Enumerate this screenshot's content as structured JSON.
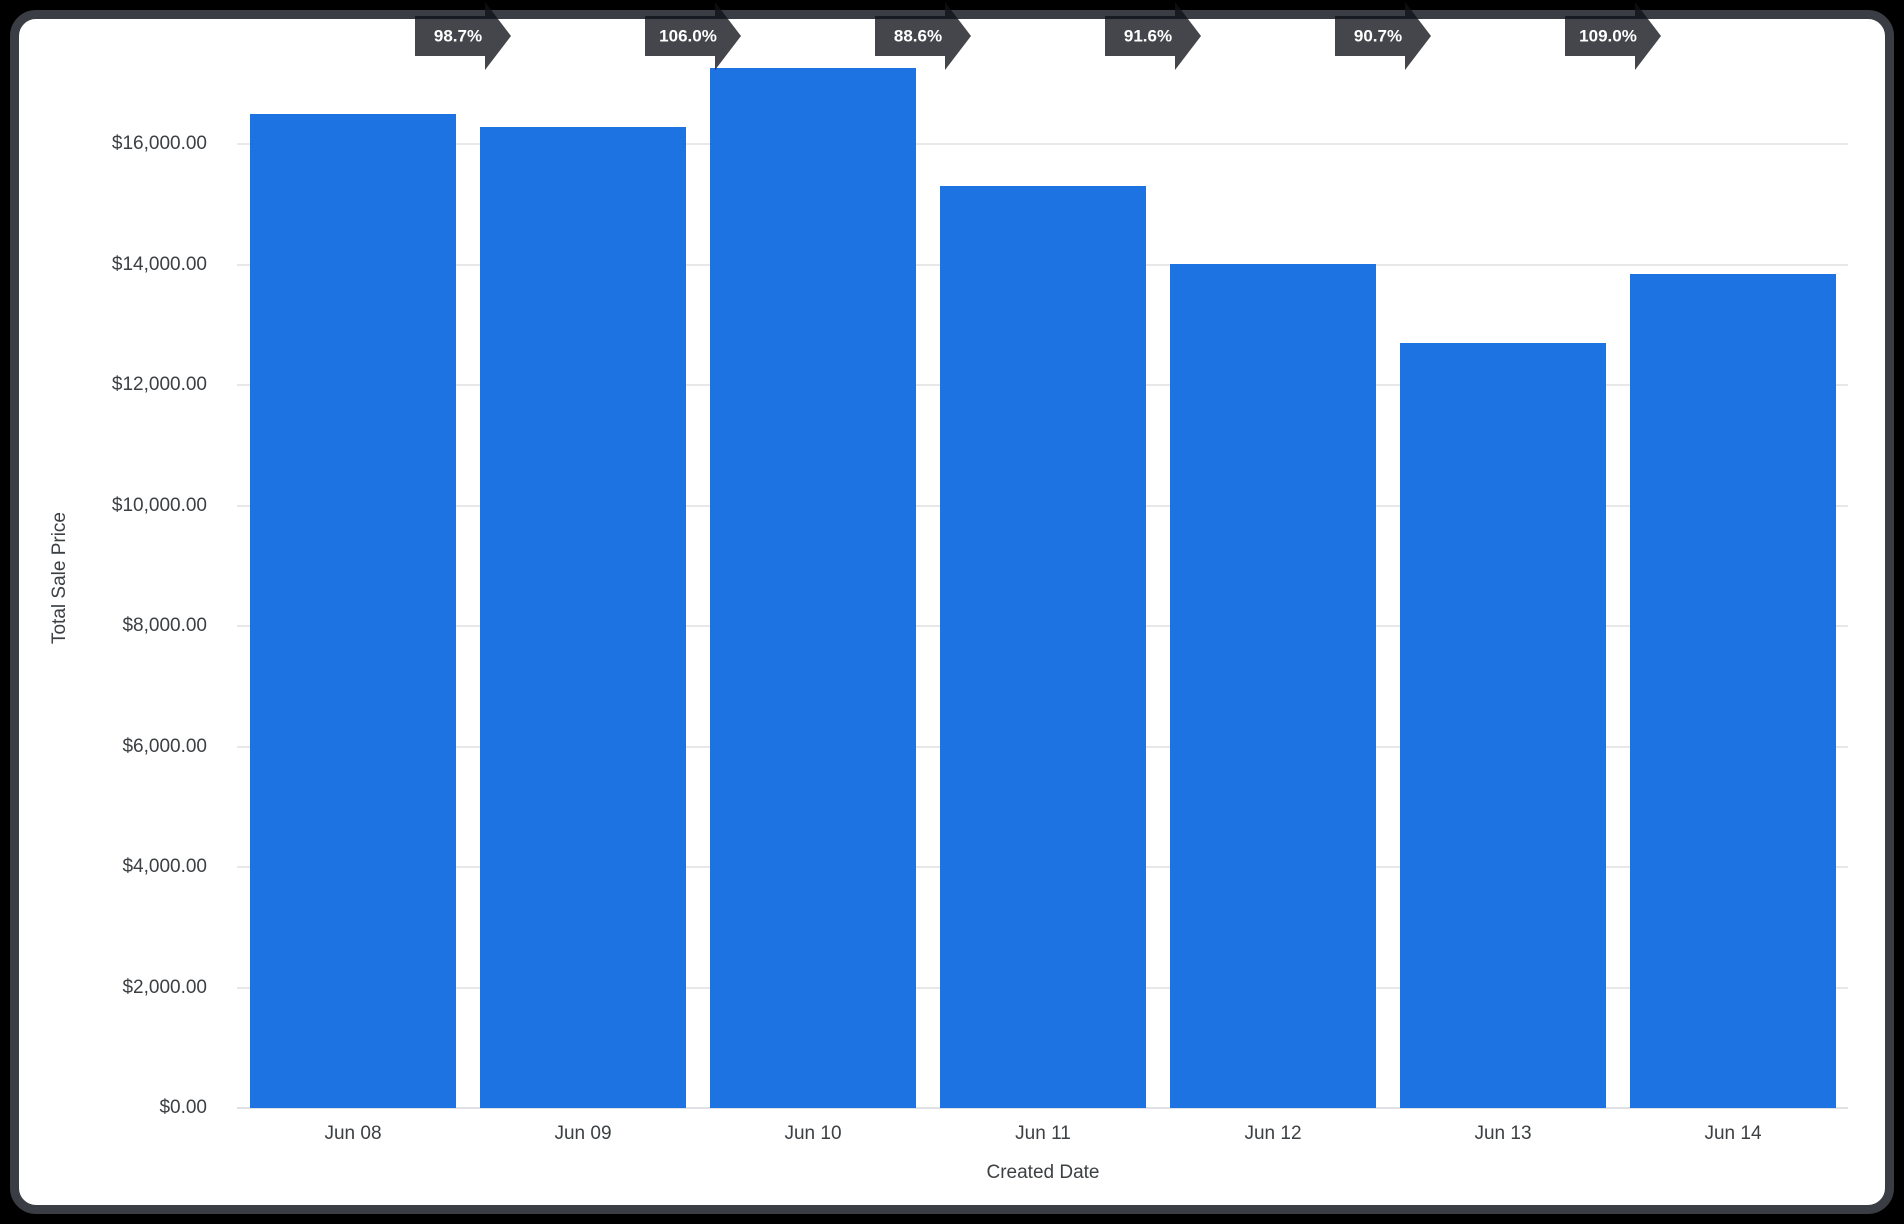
{
  "chart_data": {
    "type": "bar",
    "title": "",
    "xlabel": "Created Date",
    "ylabel": "Total Sale Price",
    "categories": [
      "Jun 08",
      "Jun 09",
      "Jun 10",
      "Jun 11",
      "Jun 12",
      "Jun 13",
      "Jun 14"
    ],
    "values": [
      16500,
      16285,
      17265,
      15295,
      14010,
      12705,
      13850
    ],
    "value_format": "USD",
    "y_ticks": [
      "$0.00",
      "$2,000.00",
      "$4,000.00",
      "$6,000.00",
      "$8,000.00",
      "$10,000.00",
      "$12,000.00",
      "$14,000.00",
      "$16,000.00"
    ],
    "y_tick_values": [
      0,
      2000,
      4000,
      6000,
      8000,
      10000,
      12000,
      14000,
      16000
    ],
    "ylim": [
      0,
      17600
    ],
    "grid": true,
    "legend": "none",
    "comparison_arrows": [
      {
        "from": "Jun 08",
        "to": "Jun 09",
        "label": "98.7%"
      },
      {
        "from": "Jun 09",
        "to": "Jun 10",
        "label": "106.0%"
      },
      {
        "from": "Jun 10",
        "to": "Jun 11",
        "label": "88.6%"
      },
      {
        "from": "Jun 11",
        "to": "Jun 12",
        "label": "91.6%"
      },
      {
        "from": "Jun 12",
        "to": "Jun 13",
        "label": "90.7%"
      },
      {
        "from": "Jun 13",
        "to": "Jun 14",
        "label": "109.0%"
      }
    ]
  },
  "colors": {
    "bar": "#1e73e2",
    "arrow_fill": "rgba(16,18,24,0.78)",
    "arrow_text": "#ffffff",
    "grid": "#e8e8e8",
    "axis_text": "#3c4043",
    "card_background": "#ffffff",
    "frame_border": "#3a3e44",
    "page_background": "#000000"
  }
}
